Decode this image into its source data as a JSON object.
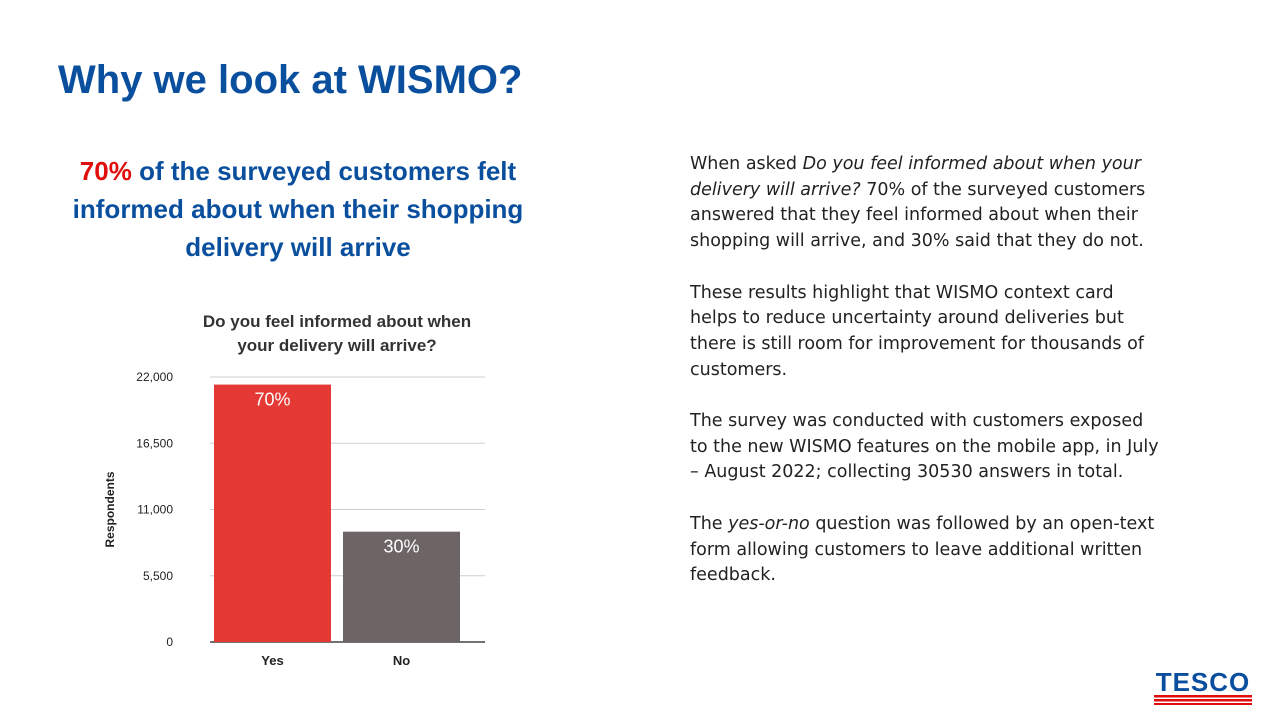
{
  "slide": {
    "title": "Why we look at WISMO?",
    "headline": {
      "highlight": "70%",
      "rest": "of the surveyed customers felt informed about when their shopping delivery will arrive"
    },
    "body": [
      {
        "lead": "When asked ",
        "italic": "Do you feel informed about when your delivery will arrive?",
        "tail": " 70% of the surveyed customers answered that they feel informed about when their shopping will arrive, and 30% said that they do not."
      },
      {
        "lead": "These results highlight that WISMO context card helps to reduce uncertainty around deliveries but there is still room for improvement for thousands of customers.",
        "italic": "",
        "tail": ""
      },
      {
        "lead": "The survey was conducted with customers exposed to the new WISMO features on the mobile app, in July – August 2022; collecting 30530 answers in total.",
        "italic": "",
        "tail": ""
      },
      {
        "lead": "The ",
        "italic": "yes-or-no",
        "tail": " question was followed by an open-text form allowing customers to leave additional written feedback."
      }
    ]
  },
  "logo": {
    "text": "TESCO",
    "color_text": "#0a4f9e",
    "color_stripes": "#e00d0d"
  },
  "chart_data": {
    "type": "bar",
    "title": "Do you feel informed about when your delivery will arrive?",
    "ylabel": "Respondents",
    "xlabel": "",
    "categories": [
      "Yes",
      "No"
    ],
    "values": [
      21371,
      9159
    ],
    "data_labels": [
      "70%",
      "30%"
    ],
    "bar_colors": [
      "#e53935",
      "#6d6565"
    ],
    "ylim": [
      0,
      22000
    ],
    "yticks": [
      0,
      5500,
      11000,
      16500,
      22000
    ],
    "ytick_labels": [
      "0",
      "5,500",
      "11,000",
      "16,500",
      "22,000"
    ],
    "grid": true
  }
}
